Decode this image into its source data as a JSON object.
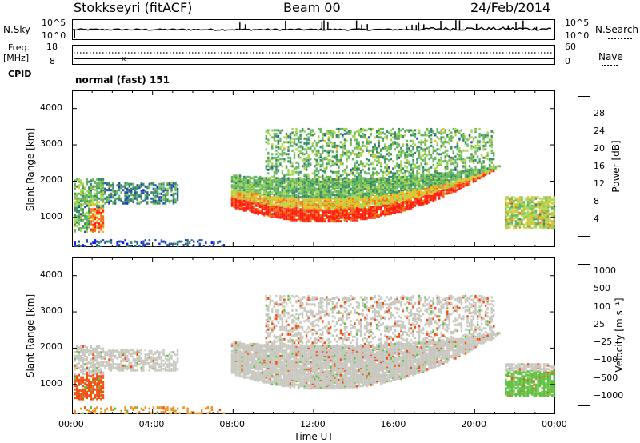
{
  "header": {
    "radar": "Stokkseyri (fitACF)",
    "beam": "Beam 00",
    "date": "24/Feb/2014"
  },
  "top_panels": {
    "nsky_label": "N.Sky",
    "nsky_ticks": [
      "10^5",
      "10^0"
    ],
    "nsearch_label": "N.Search",
    "nsearch_ticks": [
      "10^5",
      "10^0"
    ],
    "freq_label": "Freq.",
    "freq_unit": "[MHz]",
    "freq_ticks": [
      "18",
      "8"
    ],
    "nave_label": "Nave",
    "nave_ticks": [
      "60",
      "0"
    ],
    "cpid_label": "CPID",
    "cpid_value": "normal (fast) 151"
  },
  "colors": {
    "power_scale": [
      "#1a1aff",
      "#2050a0",
      "#3a8a6a",
      "#66b860",
      "#a8d850",
      "#e8c028",
      "#f07818",
      "#ff2010"
    ],
    "velocity_scale": [
      "#e81010",
      "#f05010",
      "#f09020",
      "#c8c8c0",
      "#c8c8c0",
      "#60c040",
      "#3a8a50",
      "#2040b0"
    ]
  },
  "chart_data": [
    {
      "type": "heatmap",
      "name": "power",
      "ylabel": "Slant Range [km]",
      "y_ticks": [
        "1000",
        "2000",
        "3000",
        "4000"
      ],
      "ylim": [
        180,
        4500
      ],
      "x_ticks": [
        "00:00",
        "04:00",
        "08:00",
        "12:00",
        "16:00",
        "20:00",
        "00:00"
      ],
      "xlim": [
        0,
        24
      ],
      "colorbar_label": "Power [dB]",
      "colorbar_ticks": [
        "4",
        "8",
        "12",
        "16",
        "20",
        "24",
        "28"
      ]
    },
    {
      "type": "heatmap",
      "name": "velocity",
      "ylabel": "Slant Range [km]",
      "y_ticks": [
        "1000",
        "2000",
        "3000",
        "4000"
      ],
      "ylim": [
        180,
        4500
      ],
      "x_ticks": [
        "00:00",
        "04:00",
        "08:00",
        "12:00",
        "16:00",
        "20:00",
        "00:00"
      ],
      "xlim": [
        0,
        24
      ],
      "xlabel": "Time UT",
      "colorbar_label": "Velocity [m s⁻¹]",
      "colorbar_ticks": [
        "1000",
        "500",
        "100",
        "25",
        "−25",
        "−100",
        "−500",
        "−1000"
      ]
    }
  ]
}
